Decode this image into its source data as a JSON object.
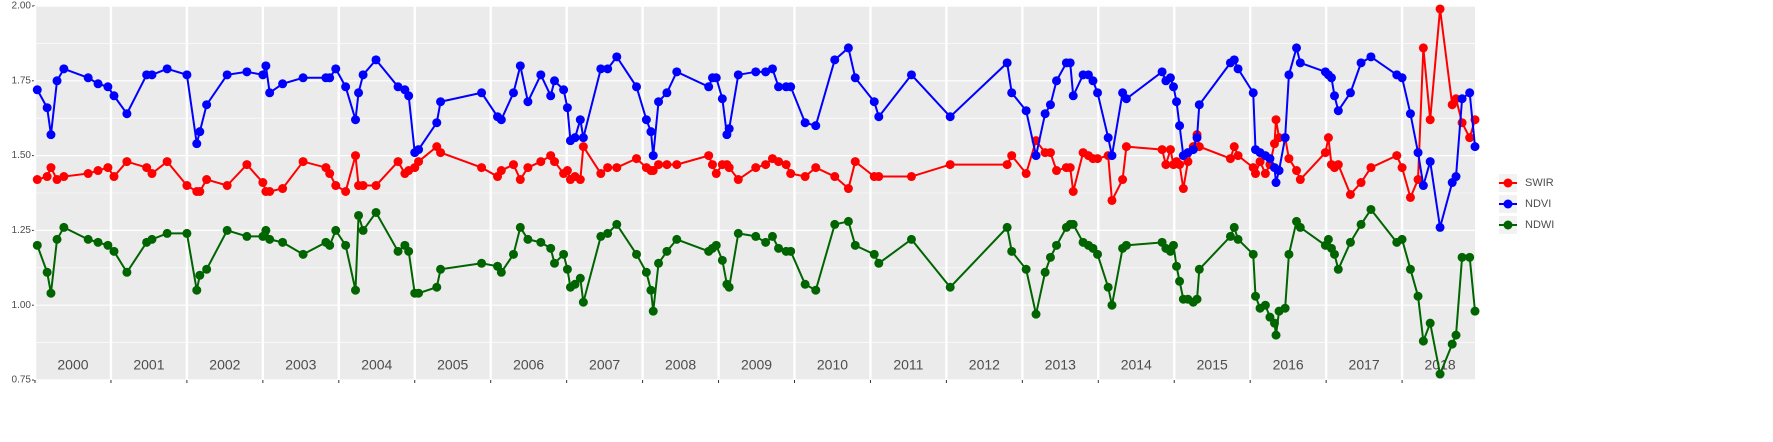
{
  "chart_data": {
    "type": "line",
    "x": [
      2000.03,
      2000.16,
      2000.21,
      2000.29,
      2000.38,
      2000.7,
      2000.83,
      2000.96,
      2001.04,
      2001.21,
      2001.47,
      2001.54,
      2001.74,
      2002.0,
      2002.13,
      2002.17,
      2002.26,
      2002.53,
      2002.79,
      2003.0,
      2003.04,
      2003.09,
      2003.26,
      2003.53,
      2003.83,
      2003.88,
      2003.96,
      2004.09,
      2004.22,
      2004.26,
      2004.32,
      2004.49,
      2004.78,
      2004.87,
      2004.92,
      2005.0,
      2005.05,
      2005.29,
      2005.34,
      2005.88,
      2006.09,
      2006.14,
      2006.3,
      2006.39,
      2006.49,
      2006.66,
      2006.79,
      2006.84,
      2006.96,
      2007.01,
      2007.05,
      2007.11,
      2007.18,
      2007.22,
      2007.45,
      2007.54,
      2007.66,
      2007.92,
      2008.05,
      2008.11,
      2008.14,
      2008.21,
      2008.32,
      2008.45,
      2008.87,
      2008.92,
      2008.97,
      2009.05,
      2009.11,
      2009.14,
      2009.26,
      2009.49,
      2009.62,
      2009.71,
      2009.79,
      2009.89,
      2009.95,
      2010.14,
      2010.28,
      2010.53,
      2010.71,
      2010.8,
      2011.05,
      2011.11,
      2011.54,
      2012.05,
      2012.8,
      2012.86,
      2013.05,
      2013.18,
      2013.3,
      2013.37,
      2013.45,
      2013.58,
      2013.63,
      2013.67,
      2013.8,
      2013.87,
      2013.93,
      2013.99,
      2014.13,
      2014.18,
      2014.32,
      2014.37,
      2014.84,
      2014.89,
      2014.95,
      2014.99,
      2015.03,
      2015.07,
      2015.12,
      2015.18,
      2015.25,
      2015.3,
      2015.33,
      2015.74,
      2015.79,
      2015.84,
      2016.04,
      2016.07,
      2016.13,
      2016.2,
      2016.26,
      2016.32,
      2016.34,
      2016.38,
      2016.46,
      2016.51,
      2016.61,
      2016.66,
      2016.99,
      2017.03,
      2017.07,
      2017.11,
      2017.16,
      2017.32,
      2017.46,
      2017.59,
      2017.93,
      2018.0,
      2018.11,
      2018.21,
      2018.28,
      2018.37,
      2018.5,
      2018.66,
      2018.71,
      2018.79,
      2018.89,
      2018.96
    ],
    "series": [
      {
        "name": "SWIR",
        "color": "#ff0000",
        "values": [
          1.42,
          1.43,
          1.46,
          1.42,
          1.43,
          1.44,
          1.45,
          1.46,
          1.43,
          1.48,
          1.46,
          1.44,
          1.48,
          1.4,
          1.38,
          1.38,
          1.42,
          1.4,
          1.47,
          1.41,
          1.38,
          1.38,
          1.39,
          1.48,
          1.46,
          1.44,
          1.4,
          1.38,
          1.5,
          1.4,
          1.4,
          1.4,
          1.48,
          1.44,
          1.45,
          1.46,
          1.48,
          1.53,
          1.51,
          1.46,
          1.43,
          1.45,
          1.47,
          1.42,
          1.46,
          1.48,
          1.5,
          1.48,
          1.44,
          1.45,
          1.42,
          1.43,
          1.42,
          1.53,
          1.44,
          1.46,
          1.46,
          1.49,
          1.46,
          1.45,
          1.45,
          1.47,
          1.47,
          1.47,
          1.5,
          1.47,
          1.44,
          1.47,
          1.47,
          1.46,
          1.42,
          1.46,
          1.47,
          1.49,
          1.48,
          1.47,
          1.44,
          1.43,
          1.46,
          1.43,
          1.39,
          1.48,
          1.43,
          1.43,
          1.43,
          1.47,
          1.47,
          1.5,
          1.44,
          1.55,
          1.51,
          1.51,
          1.45,
          1.46,
          1.46,
          1.38,
          1.51,
          1.5,
          1.49,
          1.49,
          1.5,
          1.35,
          1.42,
          1.53,
          1.52,
          1.47,
          1.52,
          1.47,
          1.48,
          1.47,
          1.39,
          1.48,
          1.53,
          1.57,
          1.53,
          1.49,
          1.53,
          1.5,
          1.46,
          1.44,
          1.48,
          1.44,
          1.47,
          1.54,
          1.62,
          1.56,
          1.56,
          1.49,
          1.45,
          1.42,
          1.51,
          1.56,
          1.47,
          1.46,
          1.47,
          1.37,
          1.41,
          1.46,
          1.5,
          1.46,
          1.36,
          1.42,
          1.86,
          1.62,
          1.99,
          1.67,
          1.69,
          1.61,
          1.56,
          1.62
        ]
      },
      {
        "name": "NDVI",
        "color": "#0000ff",
        "values": [
          1.72,
          1.66,
          1.57,
          1.75,
          1.79,
          1.76,
          1.74,
          1.73,
          1.7,
          1.64,
          1.77,
          1.77,
          1.79,
          1.77,
          1.54,
          1.58,
          1.67,
          1.77,
          1.78,
          1.77,
          1.8,
          1.71,
          1.74,
          1.76,
          1.76,
          1.76,
          1.79,
          1.73,
          1.62,
          1.71,
          1.77,
          1.82,
          1.73,
          1.72,
          1.7,
          1.51,
          1.52,
          1.61,
          1.68,
          1.71,
          1.63,
          1.62,
          1.71,
          1.8,
          1.68,
          1.77,
          1.7,
          1.75,
          1.72,
          1.66,
          1.55,
          1.56,
          1.62,
          1.56,
          1.79,
          1.79,
          1.83,
          1.73,
          1.62,
          1.58,
          1.5,
          1.68,
          1.71,
          1.78,
          1.73,
          1.76,
          1.76,
          1.69,
          1.57,
          1.59,
          1.77,
          1.78,
          1.78,
          1.79,
          1.73,
          1.73,
          1.73,
          1.61,
          1.6,
          1.82,
          1.86,
          1.76,
          1.68,
          1.63,
          1.77,
          1.63,
          1.81,
          1.71,
          1.65,
          1.5,
          1.64,
          1.67,
          1.75,
          1.81,
          1.81,
          1.7,
          1.77,
          1.77,
          1.75,
          1.71,
          1.56,
          1.5,
          1.71,
          1.69,
          1.78,
          1.75,
          1.76,
          1.73,
          1.68,
          1.6,
          1.5,
          1.51,
          1.52,
          1.56,
          1.67,
          1.81,
          1.82,
          1.79,
          1.71,
          1.52,
          1.51,
          1.5,
          1.49,
          1.46,
          1.41,
          1.45,
          1.56,
          1.77,
          1.86,
          1.81,
          1.78,
          1.77,
          1.76,
          1.7,
          1.65,
          1.71,
          1.81,
          1.83,
          1.77,
          1.76,
          1.64,
          1.51,
          1.4,
          1.48,
          1.26,
          1.41,
          1.43,
          1.69,
          1.71,
          1.53
        ]
      },
      {
        "name": "NDWI",
        "color": "#006400",
        "values": [
          1.2,
          1.11,
          1.04,
          1.22,
          1.26,
          1.22,
          1.21,
          1.2,
          1.18,
          1.11,
          1.21,
          1.22,
          1.24,
          1.24,
          1.05,
          1.1,
          1.12,
          1.25,
          1.23,
          1.23,
          1.25,
          1.22,
          1.21,
          1.17,
          1.21,
          1.2,
          1.25,
          1.2,
          1.05,
          1.3,
          1.25,
          1.31,
          1.18,
          1.2,
          1.18,
          1.04,
          1.04,
          1.06,
          1.12,
          1.14,
          1.13,
          1.11,
          1.17,
          1.26,
          1.22,
          1.21,
          1.19,
          1.14,
          1.17,
          1.12,
          1.06,
          1.07,
          1.09,
          1.01,
          1.23,
          1.24,
          1.27,
          1.17,
          1.11,
          1.05,
          0.98,
          1.14,
          1.18,
          1.22,
          1.18,
          1.19,
          1.2,
          1.15,
          1.07,
          1.06,
          1.24,
          1.23,
          1.21,
          1.23,
          1.19,
          1.18,
          1.18,
          1.07,
          1.05,
          1.27,
          1.28,
          1.2,
          1.17,
          1.14,
          1.22,
          1.06,
          1.26,
          1.18,
          1.12,
          0.97,
          1.11,
          1.16,
          1.2,
          1.26,
          1.27,
          1.27,
          1.21,
          1.2,
          1.19,
          1.17,
          1.06,
          1.0,
          1.19,
          1.2,
          1.21,
          1.19,
          1.18,
          1.2,
          1.13,
          1.08,
          1.02,
          1.02,
          1.01,
          1.02,
          1.12,
          1.23,
          1.26,
          1.22,
          1.17,
          1.03,
          0.99,
          1.0,
          0.96,
          0.94,
          0.9,
          0.98,
          0.99,
          1.17,
          1.28,
          1.26,
          1.2,
          1.22,
          1.19,
          1.17,
          1.12,
          1.21,
          1.27,
          1.32,
          1.21,
          1.22,
          1.12,
          1.03,
          0.88,
          0.94,
          0.77,
          0.87,
          0.9,
          1.16,
          1.16,
          0.98
        ]
      }
    ],
    "xlim": [
      2000,
      2018.96
    ],
    "xticks": [
      2000,
      2001,
      2002,
      2003,
      2004,
      2005,
      2006,
      2007,
      2008,
      2009,
      2010,
      2011,
      2012,
      2013,
      2014,
      2015,
      2016,
      2017,
      2018
    ],
    "ylim": [
      0.75,
      2.0
    ],
    "yticks": [
      0.75,
      {
        "value": 1,
        "label": "1.00"
      },
      1.25,
      {
        "value": 1.5,
        "label": "1.50"
      },
      1.75,
      {
        "value": 2,
        "label": "2.00"
      }
    ],
    "grid": true,
    "legend_position": "right"
  }
}
